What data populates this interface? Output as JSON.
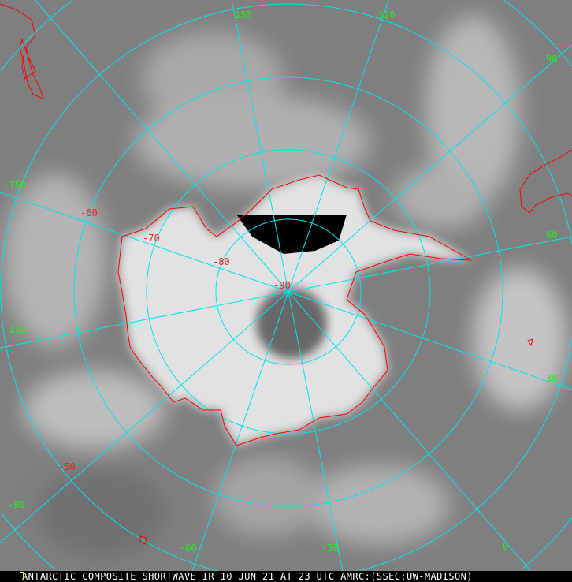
{
  "caption": "ANTARCTIC COMPOSITE SHORTWAVE IR 10 JUN 21 AT 23 UTC AMRC:(SSEC:UW-MADISON)",
  "colors": {
    "graticule": "#00e5ee",
    "coastline": "#ff0000",
    "longitude_labels": "#22ee22",
    "latitude_labels": "#ee2222"
  },
  "longitude_labels": [
    "150",
    "120",
    "90",
    "60",
    "30",
    "0",
    "-30",
    "-60",
    "-90",
    "-120",
    "-150"
  ],
  "latitude_labels": [
    "-50",
    "-60",
    "-70",
    "-80",
    "-90"
  ]
}
